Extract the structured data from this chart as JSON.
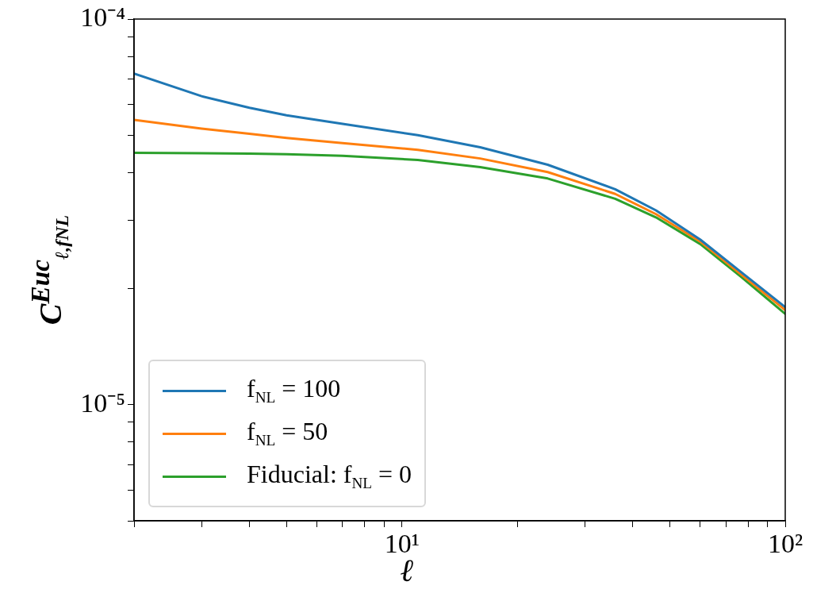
{
  "chart_data": {
    "type": "line",
    "xlabel": "ℓ",
    "ylabel": "C$^{Euc}$$_{ℓ,fNL}$",
    "x": [
      2,
      3,
      4,
      5,
      7,
      11,
      16,
      24,
      36,
      46,
      60,
      77,
      100
    ],
    "series": [
      {
        "name": "f$_{NL}$ = 100",
        "color": "#1f77b4",
        "values": [
          7.22e-05,
          6.31e-05,
          5.89e-05,
          5.63e-05,
          5.35e-05,
          5e-05,
          4.65e-05,
          4.19e-05,
          3.62e-05,
          3.19e-05,
          2.68e-05,
          2.2e-05,
          1.79e-05
        ]
      },
      {
        "name": "f$_{NL}$ = 50",
        "color": "#ff7f0e",
        "values": [
          5.48e-05,
          5.2e-05,
          5.04e-05,
          4.92e-05,
          4.77e-05,
          4.58e-05,
          4.35e-05,
          4.01e-05,
          3.52e-05,
          3.12e-05,
          2.65e-05,
          2.17e-05,
          1.76e-05
        ]
      },
      {
        "name": "Fiducial: f$_{NL}$ = 0",
        "color": "#2ca02c",
        "values": [
          4.5e-05,
          4.49e-05,
          4.48e-05,
          4.46e-05,
          4.42e-05,
          4.31e-05,
          4.13e-05,
          3.86e-05,
          3.42e-05,
          3.06e-05,
          2.61e-05,
          2.14e-05,
          1.72e-05
        ]
      }
    ],
    "log": "xy",
    "xlim": [
      2,
      100
    ],
    "ylim": [
      5e-06,
      0.0001
    ],
    "xticks": [
      {
        "value": 2,
        "label": null
      },
      {
        "value": 3,
        "label": null
      },
      {
        "value": 4,
        "label": null
      },
      {
        "value": 5,
        "label": null
      },
      {
        "value": 6,
        "label": null
      },
      {
        "value": 7,
        "label": null
      },
      {
        "value": 8,
        "label": null
      },
      {
        "value": 9,
        "label": null
      },
      {
        "value": 10,
        "label": "10¹"
      },
      {
        "value": 20,
        "label": null
      },
      {
        "value": 30,
        "label": null
      },
      {
        "value": 40,
        "label": null
      },
      {
        "value": 50,
        "label": null
      },
      {
        "value": 60,
        "label": null
      },
      {
        "value": 70,
        "label": null
      },
      {
        "value": 80,
        "label": null
      },
      {
        "value": 90,
        "label": null
      },
      {
        "value": 100,
        "label": "10²"
      }
    ],
    "yticks": [
      {
        "value": 5e-06,
        "label": null
      },
      {
        "value": 6e-06,
        "label": null
      },
      {
        "value": 7e-06,
        "label": null
      },
      {
        "value": 8e-06,
        "label": null
      },
      {
        "value": 9e-06,
        "label": null
      },
      {
        "value": 1e-05,
        "label": "10⁻⁵"
      },
      {
        "value": 2e-05,
        "label": null
      },
      {
        "value": 3e-05,
        "label": null
      },
      {
        "value": 4e-05,
        "label": null
      },
      {
        "value": 5e-05,
        "label": null
      },
      {
        "value": 6e-05,
        "label": null
      },
      {
        "value": 7e-05,
        "label": null
      },
      {
        "value": 8e-05,
        "label": null
      },
      {
        "value": 9e-05,
        "label": null
      },
      {
        "value": 0.0001,
        "label": "10⁻⁴"
      }
    ],
    "grid": false,
    "legend": "bottom left",
    "marker": "none",
    "line_style": "solid"
  }
}
